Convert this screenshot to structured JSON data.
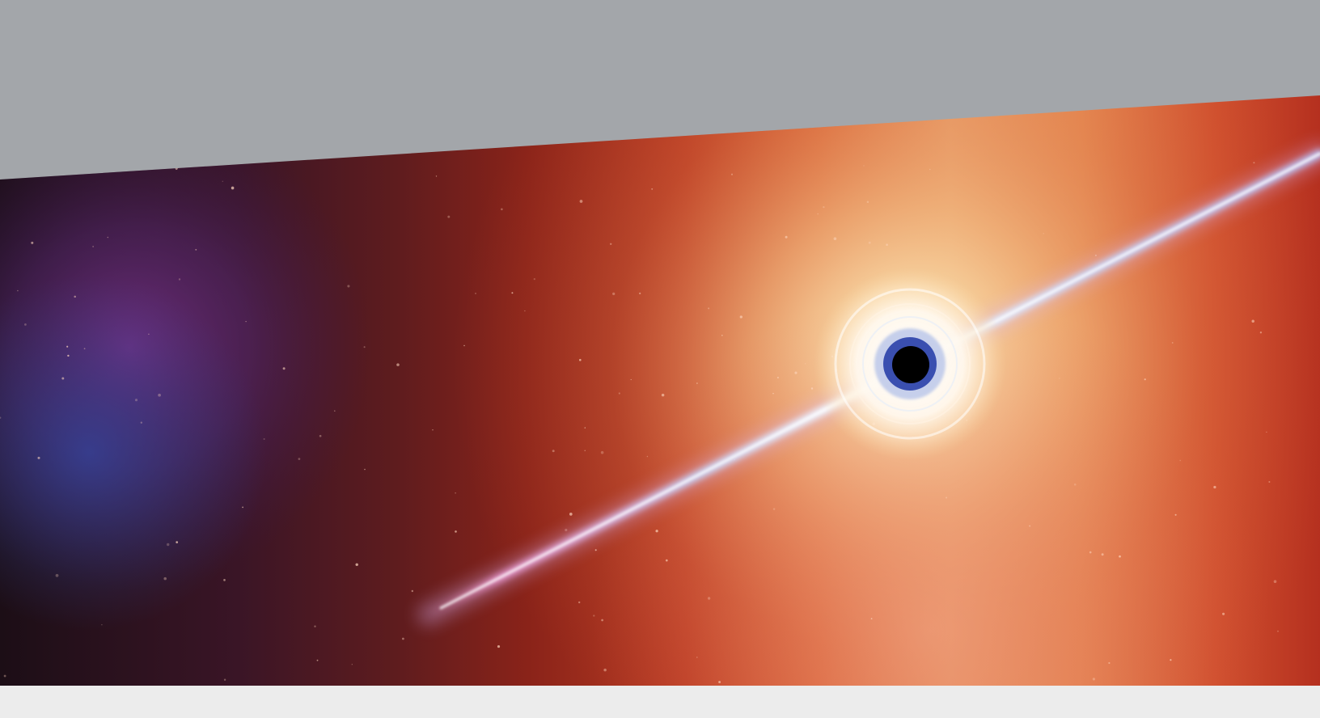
{
  "page": {
    "background_color": "#a3a6aa",
    "footer_strip_color": "#ececec"
  },
  "hero_image": {
    "subject": "black-hole-jet",
    "colors": {
      "space_dark": "#1c0e16",
      "nebula_purple": "#6b2f86",
      "nebula_blue": "#2f3f86",
      "deep_red": "#8a2319",
      "orange": "#cc4e2a",
      "glow_yellow": "#f4d090",
      "jet_blue": "#b8d4ff",
      "jet_pink": "#ff9cd0",
      "core": "#000000",
      "ring_blue": "#3a4fb0"
    }
  }
}
